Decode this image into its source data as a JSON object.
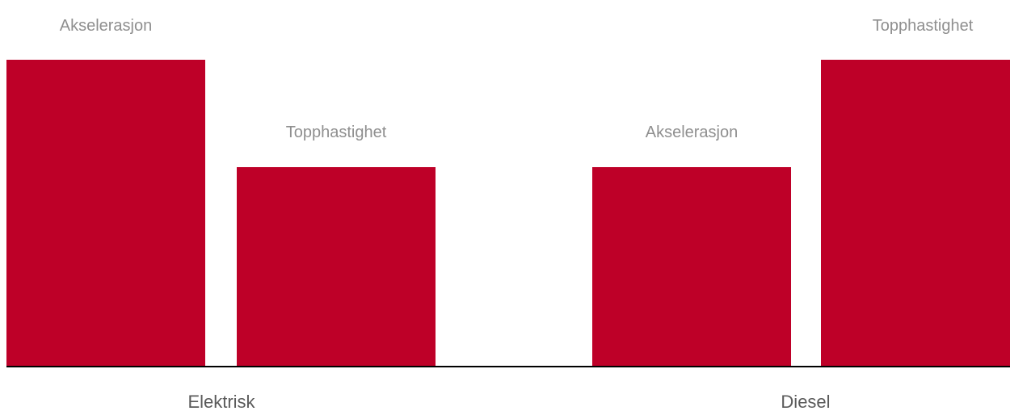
{
  "chart_data": {
    "type": "bar",
    "categories": [
      "Elektrisk",
      "Diesel"
    ],
    "series": [
      {
        "name": "Akselerasjon",
        "values": [
          100,
          65
        ]
      },
      {
        "name": "Topphastighet",
        "values": [
          65,
          100
        ]
      }
    ],
    "bar_labels": [
      [
        "Akselerasjon",
        "Topphastighet"
      ],
      [
        "Akselerasjon",
        "Topphastighet"
      ]
    ],
    "ylim": [
      0,
      100
    ],
    "grid": false,
    "legend": "none",
    "colors": {
      "bar": "#BE0028",
      "baseline": "#000000",
      "bar_label": "#8F8F8F",
      "category_label": "#5A5A5A"
    }
  }
}
